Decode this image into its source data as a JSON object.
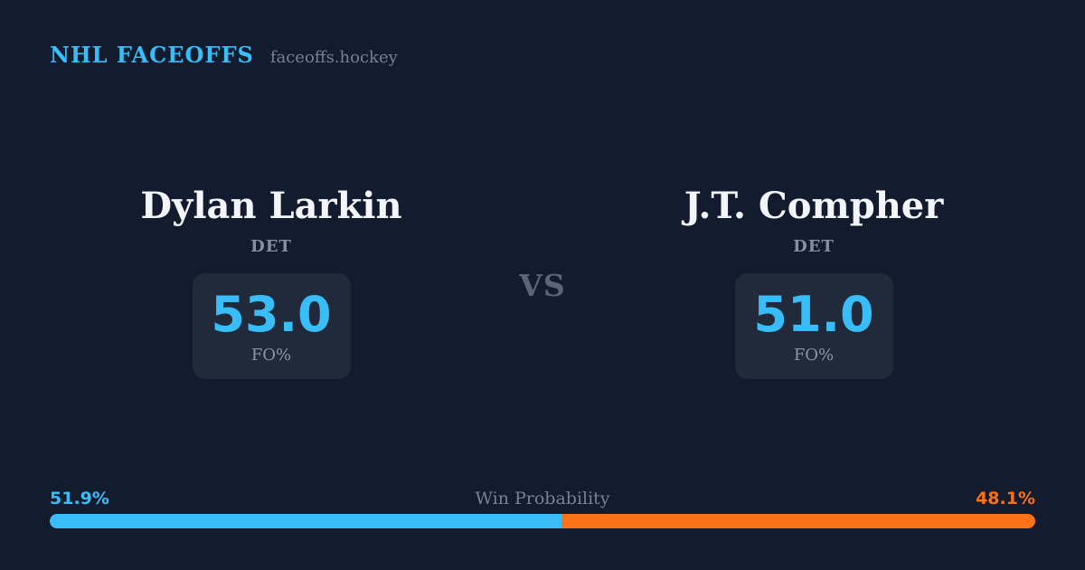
{
  "header": {
    "brand": "NHL FACEOFFS",
    "site": "faceoffs.hockey"
  },
  "matchup": {
    "vs_label": "VS",
    "players": [
      {
        "name": "Dylan Larkin",
        "team": "DET",
        "stat_value": "53.0",
        "stat_label": "FO%"
      },
      {
        "name": "J.T. Compher",
        "team": "DET",
        "stat_value": "51.0",
        "stat_label": "FO%"
      }
    ]
  },
  "win_probability": {
    "label": "Win Probability",
    "left_pct_text": "51.9%",
    "right_pct_text": "48.1%",
    "left_value": 51.9,
    "right_value": 48.1
  },
  "colors": {
    "background": "#131b2e",
    "card_box": "#202a3a",
    "accent_blue": "#38bdf8",
    "accent_orange": "#f97316",
    "name_text": "#f2f5f9",
    "muted_text": "#8490a3"
  },
  "chart_data": {
    "type": "bar",
    "title": "Win Probability",
    "orientation": "horizontal-stacked",
    "categories": [
      "Dylan Larkin (DET)",
      "J.T. Compher (DET)"
    ],
    "series": [
      {
        "name": "FO%",
        "values": [
          53.0,
          51.0
        ]
      },
      {
        "name": "Win Probability %",
        "values": [
          51.9,
          48.1
        ]
      }
    ],
    "segment_colors": [
      "#38bdf8",
      "#f97316"
    ],
    "xlim": [
      0,
      100
    ],
    "legend": "none",
    "grid": false
  }
}
